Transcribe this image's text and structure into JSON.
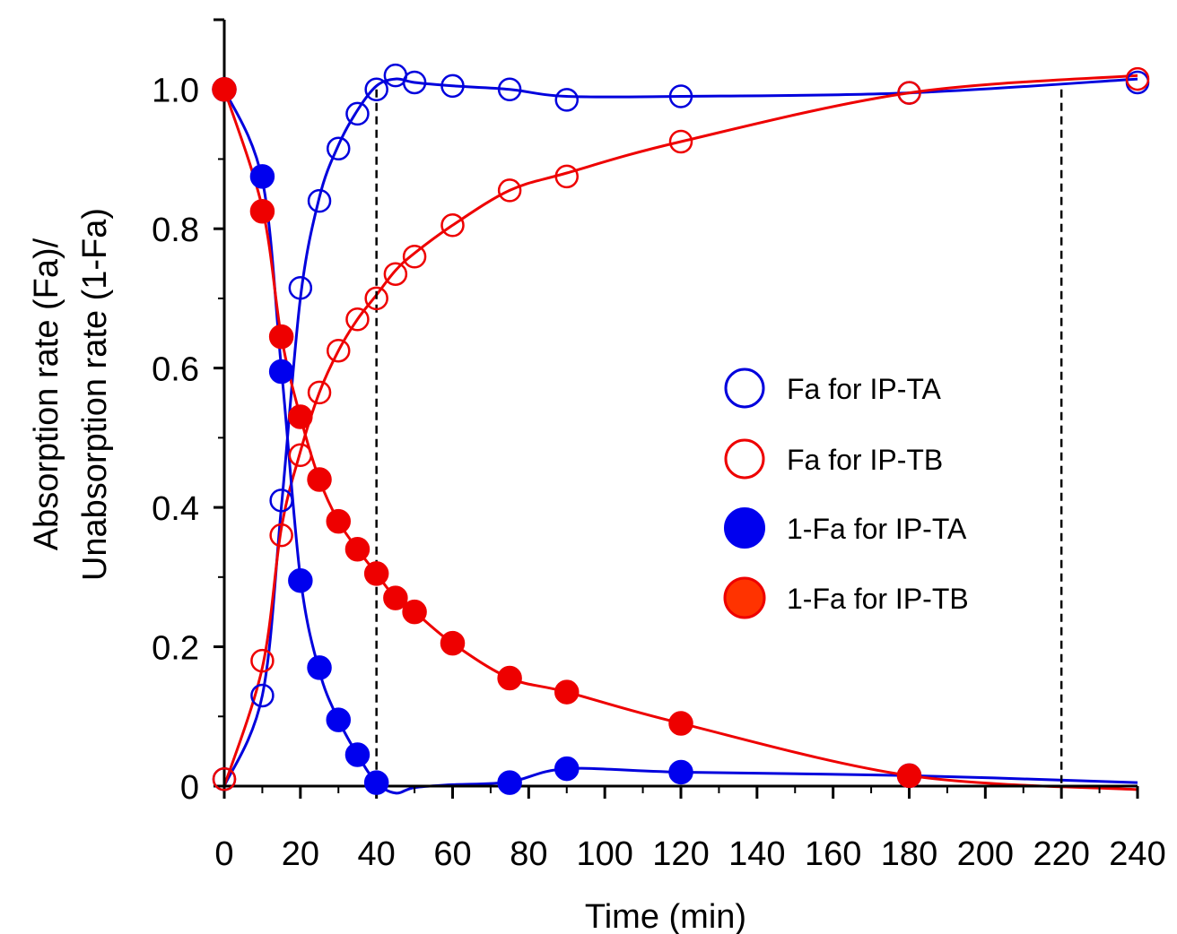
{
  "chart_data": {
    "type": "scatter",
    "xlabel": "Time (min)",
    "ylabel_lines": [
      "Absorption rate (Fa)/",
      "Unabsorption rate (1-Fa)"
    ],
    "xlim": [
      0,
      240
    ],
    "ylim": [
      0,
      1.1
    ],
    "x_ticks": [
      0,
      20,
      40,
      60,
      80,
      100,
      120,
      140,
      160,
      180,
      200,
      220,
      240
    ],
    "x_tick_labels": [
      "0",
      "20",
      "40",
      "60",
      "80",
      "100",
      "120",
      "140",
      "160",
      "180",
      "200",
      "220",
      "240"
    ],
    "y_ticks": [
      0,
      0.2,
      0.4,
      0.6,
      0.8,
      1.0
    ],
    "y_tick_labels": [
      "0",
      "0.2",
      "0.4",
      "0.6",
      "0.8",
      "1.0"
    ],
    "reference_lines_x": [
      40,
      220
    ],
    "grid": false,
    "legend_position": "center-right",
    "series": [
      {
        "name": "Fa for IP-TA",
        "color": "#0000dd",
        "marker": "open-circle",
        "x": [
          0,
          10,
          15,
          20,
          25,
          30,
          35,
          40,
          45,
          50,
          60,
          75,
          90,
          120,
          180,
          240
        ],
        "y": [
          0.01,
          0.13,
          0.41,
          0.715,
          0.84,
          0.915,
          0.965,
          1.0,
          1.02,
          1.01,
          1.005,
          1.0,
          0.985,
          0.99,
          0.995,
          1.01
        ]
      },
      {
        "name": "Fa for IP-TB",
        "color": "#ee0000",
        "marker": "open-circle",
        "x": [
          0,
          10,
          15,
          20,
          25,
          30,
          35,
          40,
          45,
          50,
          60,
          75,
          90,
          120,
          180,
          240
        ],
        "y": [
          0.01,
          0.18,
          0.36,
          0.475,
          0.565,
          0.625,
          0.67,
          0.7,
          0.735,
          0.76,
          0.805,
          0.855,
          0.875,
          0.925,
          0.995,
          1.015
        ]
      },
      {
        "name": "1-Fa for IP-TA",
        "color": "#0000ee",
        "marker": "filled-circle",
        "x": [
          0,
          10,
          15,
          20,
          25,
          30,
          35,
          40,
          75,
          90,
          120,
          180
        ],
        "y": [
          1.0,
          0.875,
          0.595,
          0.295,
          0.17,
          0.095,
          0.045,
          0.005,
          0.005,
          0.025,
          0.02,
          0.015
        ]
      },
      {
        "name": "1-Fa for IP-TB",
        "color": "#ee0000",
        "marker": "filled-circle",
        "x": [
          0,
          10,
          15,
          20,
          25,
          30,
          35,
          40,
          45,
          50,
          60,
          75,
          90,
          120,
          180
        ],
        "y": [
          1.0,
          0.825,
          0.645,
          0.53,
          0.44,
          0.38,
          0.34,
          0.305,
          0.27,
          0.25,
          0.205,
          0.155,
          0.135,
          0.09,
          0.015
        ]
      }
    ],
    "fit_curves": [
      {
        "color": "#0000dd",
        "x": [
          0,
          10,
          15,
          20,
          25,
          30,
          35,
          40,
          45,
          50,
          60,
          75,
          90,
          120,
          180,
          240
        ],
        "y": [
          0.0,
          0.13,
          0.4,
          0.7,
          0.845,
          0.92,
          0.97,
          1.005,
          1.015,
          1.01,
          1.005,
          1.0,
          0.99,
          0.99,
          0.995,
          1.015
        ]
      },
      {
        "color": "#ee0000",
        "x": [
          0,
          10,
          15,
          20,
          25,
          30,
          35,
          40,
          45,
          50,
          60,
          75,
          90,
          120,
          180,
          240
        ],
        "y": [
          0.0,
          0.17,
          0.37,
          0.48,
          0.565,
          0.625,
          0.67,
          0.705,
          0.74,
          0.765,
          0.805,
          0.855,
          0.88,
          0.925,
          0.995,
          1.02
        ]
      },
      {
        "color": "#0000dd",
        "x": [
          0,
          10,
          15,
          20,
          25,
          30,
          35,
          40,
          45,
          50,
          60,
          75,
          90,
          120,
          180,
          240
        ],
        "y": [
          1.0,
          0.87,
          0.6,
          0.3,
          0.165,
          0.095,
          0.045,
          0.005,
          -0.01,
          -0.002,
          0.002,
          0.006,
          0.025,
          0.02,
          0.015,
          0.005
        ]
      },
      {
        "color": "#ee0000",
        "x": [
          0,
          10,
          15,
          20,
          25,
          30,
          35,
          40,
          45,
          50,
          60,
          75,
          90,
          120,
          180,
          240
        ],
        "y": [
          1.0,
          0.83,
          0.645,
          0.53,
          0.44,
          0.38,
          0.34,
          0.305,
          0.27,
          0.25,
          0.205,
          0.155,
          0.135,
          0.09,
          0.015,
          -0.005
        ]
      }
    ]
  }
}
